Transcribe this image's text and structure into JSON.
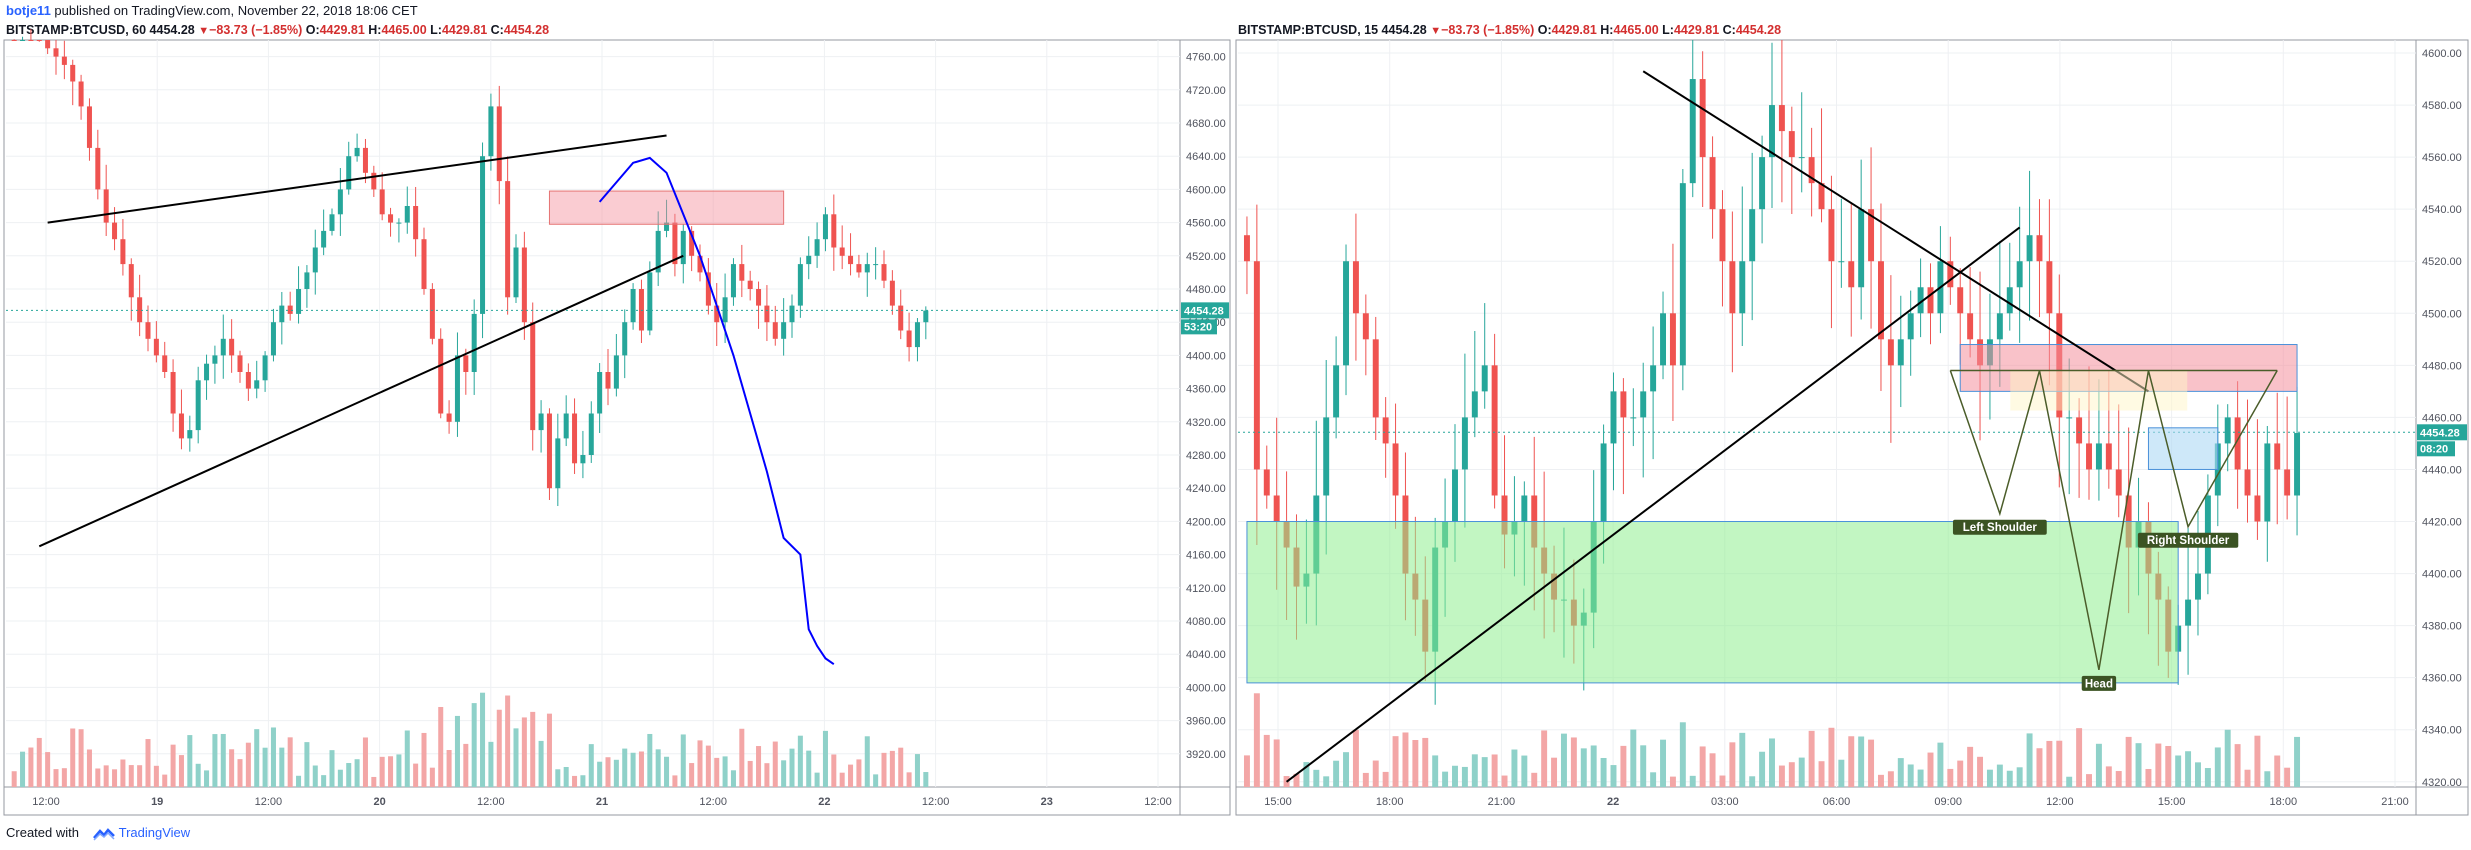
{
  "header": {
    "author": "botje11",
    "published_text": " published on TradingView.com, November 22, 2018 18:06 CET"
  },
  "footer": {
    "created_with": "Created with",
    "brand": "TradingView"
  },
  "colors": {
    "bull": "#26a69a",
    "bear": "#ef5350",
    "bull_vol": "#8fd1c9",
    "bear_vol": "#f3a6a6",
    "grid": "#eef0f3",
    "last_price_line": "#26a69a",
    "drawing_black": "#000000",
    "drawing_blue": "#0000ff",
    "pattern_green": "#4b5d2a",
    "pattern_label_bg": "#3b5323"
  },
  "chart_data": [
    {
      "type": "candlestick",
      "panel": "left",
      "symbol": "BITSTAMP:BTCUSD, 60",
      "last": "4454.28",
      "change": "−83.73 (−1.85%)",
      "open_label": "O:",
      "open": "4429.81",
      "high_label": "H:",
      "high": "4465.00",
      "low_label": "L:",
      "low": "4429.81",
      "close_label": "C:",
      "close": "4454.28",
      "ylim": [
        3880,
        4780
      ],
      "y_ticks": [
        "4760.00",
        "4720.00",
        "4680.00",
        "4640.00",
        "4600.00",
        "4560.00",
        "4520.00",
        "4480.00",
        "4440.00",
        "4400.00",
        "4360.00",
        "4320.00",
        "4280.00",
        "4240.00",
        "4200.00",
        "4160.00",
        "4120.00",
        "4080.00",
        "4040.00",
        "4000.00",
        "3960.00",
        "3920.00"
      ],
      "x_ticks": [
        "12:00",
        "19",
        "12:00",
        "20",
        "12:00",
        "21",
        "12:00",
        "22",
        "12:00",
        "23",
        "12:00"
      ],
      "price_badge": "4454.28",
      "time_badge": "53:20",
      "candle_count": 110,
      "closes": [
        4800,
        4830,
        4820,
        4790,
        4770,
        4760,
        4750,
        4730,
        4700,
        4650,
        4600,
        4560,
        4540,
        4510,
        4470,
        4440,
        4420,
        4400,
        4380,
        4330,
        4300,
        4310,
        4370,
        4390,
        4400,
        4420,
        4400,
        4380,
        4360,
        4370,
        4400,
        4440,
        4460,
        4450,
        4480,
        4500,
        4530,
        4550,
        4570,
        4600,
        4640,
        4650,
        4620,
        4600,
        4570,
        4560,
        4560,
        4580,
        4540,
        4480,
        4420,
        4330,
        4320,
        4400,
        4380,
        4450,
        4640,
        4700,
        4610,
        4470,
        4530,
        4440,
        4310,
        4330,
        4240,
        4300,
        4330,
        4270,
        4280,
        4330,
        4380,
        4360,
        4400,
        4440,
        4480,
        4430,
        4500,
        4550,
        4560,
        4510,
        4550,
        4520,
        4500,
        4460,
        4440,
        4470,
        4510,
        4490,
        4480,
        4460,
        4440,
        4420,
        4440,
        4460,
        4510,
        4520,
        4540,
        4570,
        4530,
        4520,
        4510,
        4500,
        4510,
        4510,
        4490,
        4460,
        4430,
        4410,
        4440,
        4454
      ],
      "drawings": {
        "upper_trendline": {
          "from": [
            4,
            4560
          ],
          "to": [
            78,
            4665
          ]
        },
        "lower_trendline": {
          "from": [
            3,
            4170
          ],
          "to": [
            80,
            4520
          ]
        },
        "resistance_box": {
          "x0": 64,
          "x1": 92,
          "y0": 4558,
          "y1": 4598
        },
        "projection_curve_points": [
          [
            70,
            4585
          ],
          [
            74,
            4632
          ],
          [
            76,
            4638
          ],
          [
            78,
            4620
          ],
          [
            80,
            4570
          ],
          [
            82,
            4520
          ],
          [
            84,
            4460
          ],
          [
            86,
            4400
          ],
          [
            88,
            4330
          ],
          [
            90,
            4260
          ],
          [
            92,
            4180
          ],
          [
            94,
            4160
          ],
          [
            95,
            4070
          ],
          [
            96,
            4050
          ],
          [
            97,
            4035
          ],
          [
            98,
            4028
          ]
        ]
      }
    },
    {
      "type": "candlestick",
      "panel": "right",
      "symbol": "BITSTAMP:BTCUSD, 15",
      "last": "4454.28",
      "change": "−83.73 (−1.85%)",
      "open_label": "O:",
      "open": "4429.81",
      "high_label": "H:",
      "high": "4465.00",
      "low_label": "L:",
      "low": "4429.81",
      "close_label": "C:",
      "close": "4454.28",
      "ylim": [
        4318,
        4605
      ],
      "y_ticks": [
        "4600.00",
        "4580.00",
        "4560.00",
        "4540.00",
        "4520.00",
        "4500.00",
        "4480.00",
        "4460.00",
        "4440.00",
        "4420.00",
        "4400.00",
        "4380.00",
        "4360.00",
        "4340.00",
        "4320.00"
      ],
      "x_ticks": [
        "15:00",
        "18:00",
        "21:00",
        "22",
        "03:00",
        "06:00",
        "09:00",
        "12:00",
        "15:00",
        "18:00",
        "21:00"
      ],
      "price_badge": "4454.28",
      "time_badge": "08:20",
      "candle_count": 107,
      "closes": [
        4520,
        4440,
        4430,
        4420,
        4410,
        4395,
        4400,
        4430,
        4460,
        4480,
        4520,
        4500,
        4490,
        4460,
        4450,
        4430,
        4400,
        4390,
        4370,
        4410,
        4420,
        4440,
        4460,
        4470,
        4480,
        4430,
        4415,
        4420,
        4430,
        4410,
        4400,
        4390,
        4390,
        4380,
        4385,
        4420,
        4450,
        4470,
        4460,
        4460,
        4470,
        4480,
        4500,
        4480,
        4550,
        4590,
        4560,
        4540,
        4520,
        4500,
        4520,
        4540,
        4560,
        4580,
        4570,
        4560,
        4560,
        4550,
        4540,
        4520,
        4520,
        4510,
        4540,
        4520,
        4490,
        4480,
        4490,
        4500,
        4510,
        4500,
        4520,
        4510,
        4500,
        4490,
        4480,
        4490,
        4500,
        4510,
        4520,
        4530,
        4520,
        4500,
        4460,
        4460,
        4450,
        4440,
        4450,
        4440,
        4430,
        4410,
        4420,
        4400,
        4390,
        4370,
        4380,
        4390,
        4400,
        4430,
        4450,
        4460,
        4440,
        4430,
        4420,
        4450,
        4440,
        4430,
        4454
      ],
      "drawings": {
        "descending_trendline": {
          "from": [
            40,
            4593
          ],
          "to": [
            91,
            4470
          ]
        },
        "ascending_trendline": {
          "from": [
            4,
            4320
          ],
          "to": [
            78,
            4533
          ]
        },
        "resistance_box": {
          "x0": 72,
          "x1": 106,
          "y0": 4470,
          "y1": 4488
        },
        "small_blue_box": {
          "x0": 91,
          "x1": 98,
          "y0": 4440,
          "y1": 4456
        },
        "support_box": {
          "x0": 0,
          "x1": 94,
          "y0": 4358,
          "y1": 4420
        },
        "head_and_shoulders": {
          "neckline": {
            "from": [
              71,
              4478
            ],
            "to": [
              104,
              4478
            ]
          },
          "points": [
            [
              71,
              4478
            ],
            [
              76,
              4423
            ],
            [
              80,
              4478
            ],
            [
              86,
              4363
            ],
            [
              91,
              4478
            ],
            [
              95,
              4418
            ],
            [
              104,
              4478
            ]
          ],
          "left_shoulder_label": "Left Shoulder",
          "head_label": "Head",
          "right_shoulder_label": "Right Shoulder"
        }
      }
    }
  ]
}
